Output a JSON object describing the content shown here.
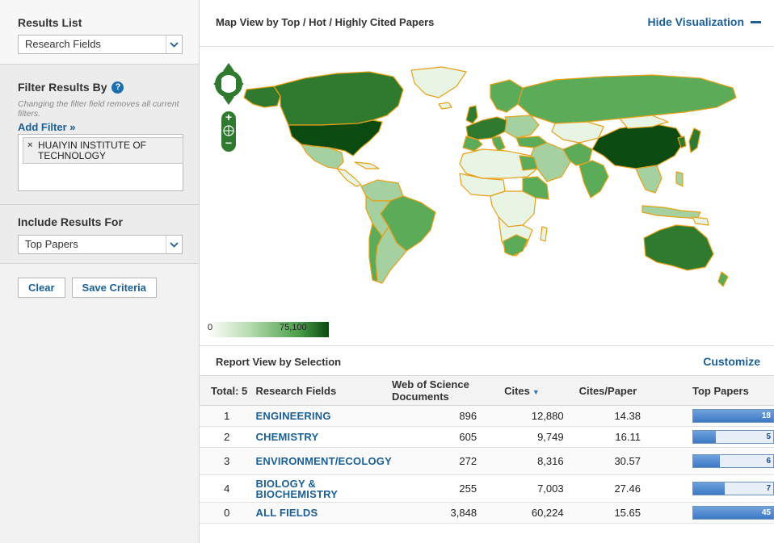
{
  "sidebar": {
    "results_list_label": "Results List",
    "results_list_value": "Research Fields",
    "filter_heading": "Filter Results By",
    "filter_note": "Changing the filter field removes all current filters.",
    "add_filter": "Add Filter »",
    "filter_chip": "HUAIYIN INSTITUTE OF TECHNOLOGY",
    "include_label": "Include Results For",
    "include_value": "Top Papers",
    "clear_button": "Clear",
    "save_button": "Save Criteria"
  },
  "map": {
    "title": "Map View by Top / Hot / Highly Cited Papers",
    "hide_label": "Hide Visualization",
    "legend_min": "0",
    "legend_max": "75,100",
    "colors": {
      "darkest": "#0b4a10",
      "dark": "#2f7a2f",
      "medium": "#5bab59",
      "light": "#a5d1a0",
      "lightest": "#e8f4e4",
      "border": "#e7a018"
    }
  },
  "report": {
    "title": "Report View by Selection",
    "customize": "Customize",
    "headers": {
      "total": "Total: 5",
      "field": "Research Fields",
      "docs": "Web of Science Documents",
      "cites": "Cites",
      "cites_per_paper": "Cites/Paper",
      "top_papers": "Top Papers"
    },
    "rows": [
      {
        "index": "1",
        "field": "ENGINEERING",
        "docs": "896",
        "cites": "12,880",
        "cpp": "14.38",
        "top": "18",
        "top_fraction": 1.0
      },
      {
        "index": "2",
        "field": "CHEMISTRY",
        "docs": "605",
        "cites": "9,749",
        "cpp": "16.11",
        "top": "5",
        "top_fraction": 0.28
      },
      {
        "index": "3",
        "field": "ENVIRONMENT/ECOLOGY",
        "docs": "272",
        "cites": "8,316",
        "cpp": "30.57",
        "top": "6",
        "top_fraction": 0.33
      },
      {
        "index": "4",
        "field": "BIOLOGY & BIOCHEMISTRY",
        "docs": "255",
        "cites": "7,003",
        "cpp": "27.46",
        "top": "7",
        "top_fraction": 0.39
      },
      {
        "index": "0",
        "field": "ALL FIELDS",
        "docs": "3,848",
        "cites": "60,224",
        "cpp": "15.65",
        "top": "45",
        "top_fraction": 1.0
      }
    ]
  }
}
